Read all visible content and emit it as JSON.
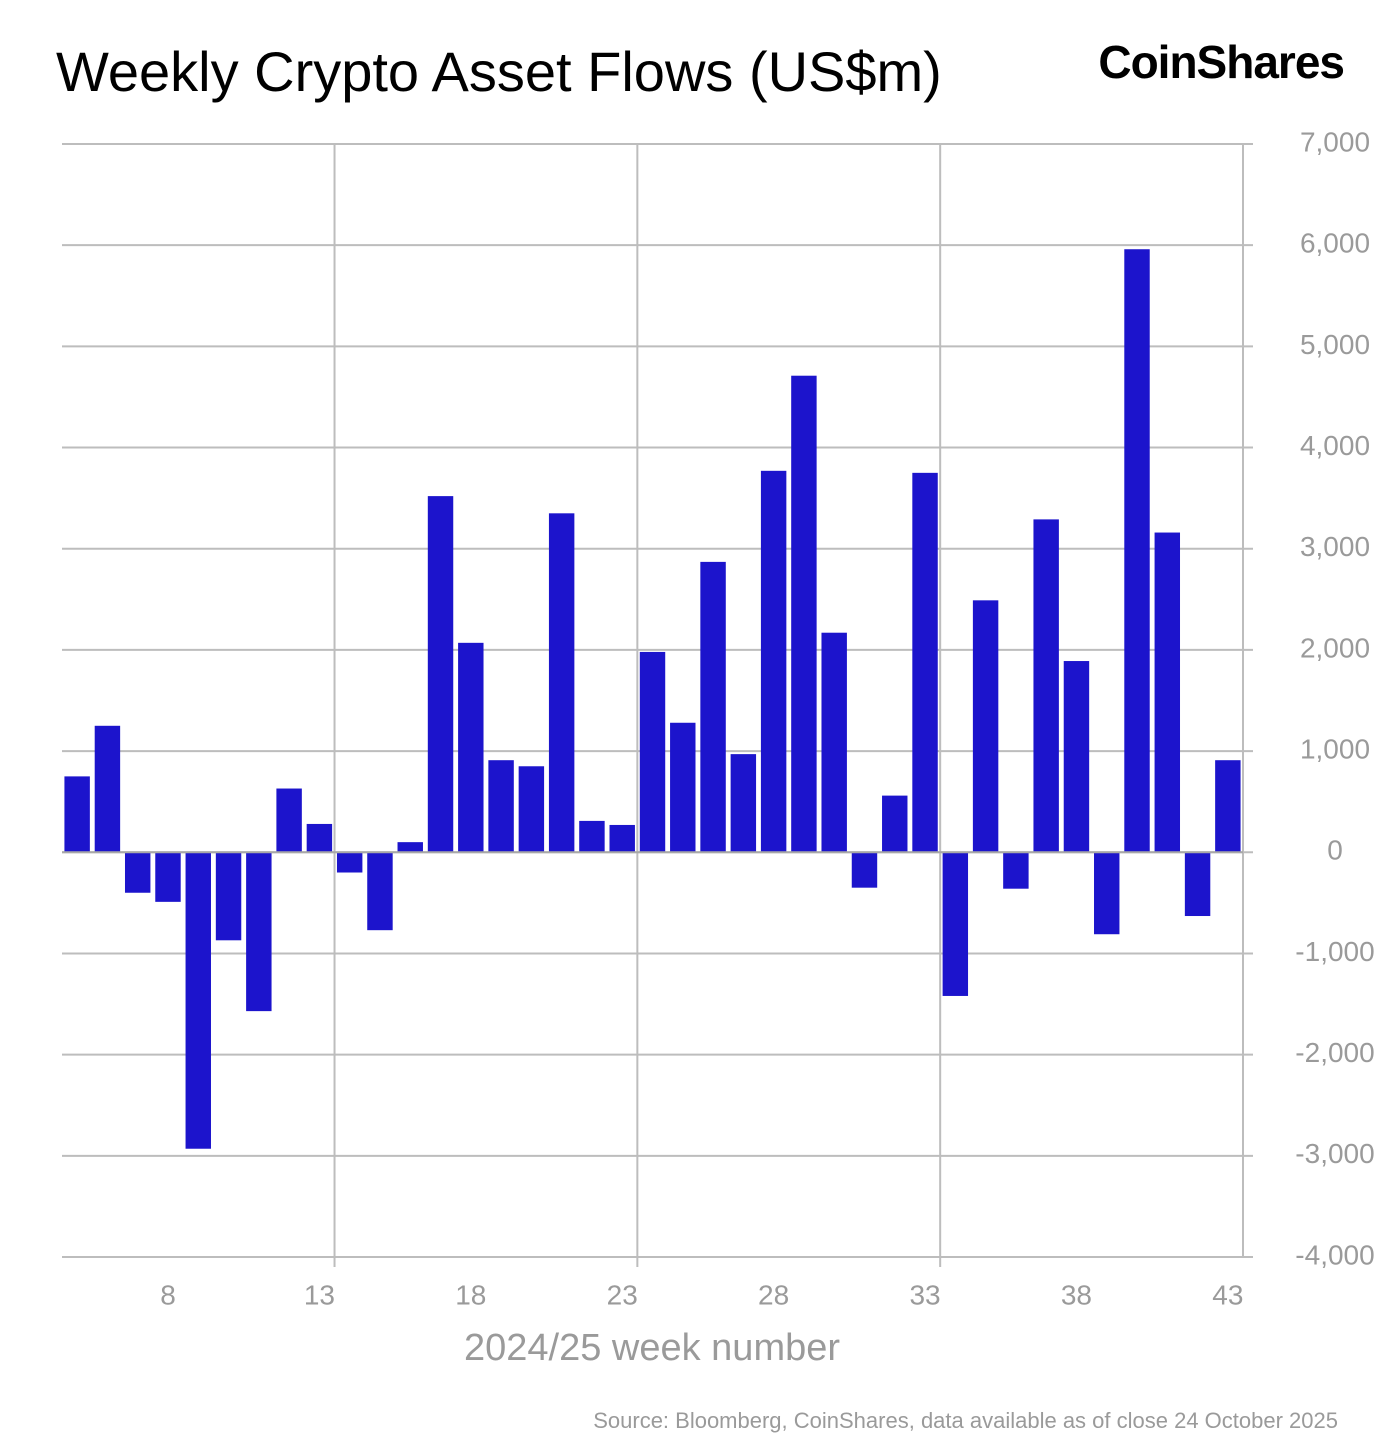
{
  "chart_data": {
    "type": "bar",
    "title": "Weekly Crypto Asset Flows (US$m)",
    "brand": "CoinShares",
    "x_label": "2024/25 week number",
    "source": "Source: Bloomberg, CoinShares, data available as of close 24 October 2025",
    "color": "#1c14cc",
    "x": [
      5,
      6,
      7,
      8,
      9,
      10,
      11,
      12,
      13,
      14,
      15,
      16,
      17,
      18,
      19,
      20,
      21,
      22,
      23,
      24,
      25,
      26,
      27,
      28,
      29,
      30,
      31,
      32,
      33,
      34,
      35,
      36,
      37,
      38,
      39,
      40,
      41,
      42,
      43
    ],
    "values": [
      750,
      1250,
      -400,
      -490,
      -2930,
      -870,
      -1570,
      630,
      280,
      -200,
      -770,
      100,
      3520,
      2070,
      910,
      850,
      3350,
      310,
      270,
      1980,
      1280,
      2870,
      970,
      3770,
      4710,
      2170,
      -350,
      560,
      3750,
      -1420,
      2490,
      -360,
      3290,
      1890,
      -810,
      5960,
      3160,
      -630,
      910
    ],
    "xlim": [
      4.5,
      43.5
    ],
    "xticks": [
      8,
      13,
      18,
      23,
      28,
      33,
      38,
      43
    ],
    "xgrid": [
      13.5,
      23.5,
      33.5
    ],
    "ylim": [
      -4000,
      7000
    ],
    "yticks": [
      {
        "value": -4000,
        "label": "-4,000"
      },
      {
        "value": -3000,
        "label": "-3,000"
      },
      {
        "value": -2000,
        "label": "-2,000"
      },
      {
        "value": -1000,
        "label": "-1,000"
      },
      0,
      {
        "value": 1000,
        "label": "1,000"
      },
      {
        "value": 2000,
        "label": "2,000"
      },
      {
        "value": 3000,
        "label": "3,000"
      },
      {
        "value": 4000,
        "label": "4,000"
      },
      {
        "value": 5000,
        "label": "5,000"
      },
      {
        "value": 6000,
        "label": "6,000"
      },
      {
        "value": 7000,
        "label": "7,000"
      }
    ],
    "y_axis_side": "right",
    "grid": true
  }
}
